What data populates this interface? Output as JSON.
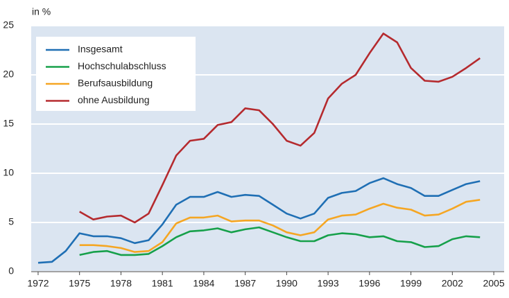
{
  "chart_data": {
    "type": "line",
    "y_label": "in %",
    "x": [
      1972,
      1973,
      1974,
      1975,
      1976,
      1977,
      1978,
      1979,
      1980,
      1981,
      1982,
      1983,
      1984,
      1985,
      1986,
      1987,
      1988,
      1989,
      1990,
      1991,
      1992,
      1993,
      1994,
      1995,
      1996,
      1997,
      1998,
      1999,
      2000,
      2001,
      2002,
      2003,
      2004
    ],
    "series": [
      {
        "name": "Insgesamt",
        "color": "#1f6fb4",
        "values": [
          0.9,
          1.0,
          2.1,
          3.9,
          3.6,
          3.6,
          3.4,
          2.9,
          3.2,
          4.8,
          6.8,
          7.6,
          7.6,
          8.1,
          7.6,
          7.8,
          7.7,
          6.8,
          5.9,
          5.4,
          5.9,
          7.5,
          8.0,
          8.2,
          9.0,
          9.5,
          8.9,
          8.5,
          7.7,
          7.7,
          8.3,
          8.9,
          9.2
        ]
      },
      {
        "name": "Hochschulabschluss",
        "color": "#16a04a",
        "values": [
          null,
          null,
          null,
          1.7,
          2.0,
          2.1,
          1.7,
          1.7,
          1.8,
          2.6,
          3.5,
          4.1,
          4.2,
          4.4,
          4.0,
          4.3,
          4.5,
          4.0,
          3.5,
          3.1,
          3.1,
          3.7,
          3.9,
          3.8,
          3.5,
          3.6,
          3.1,
          3.0,
          2.5,
          2.6,
          3.3,
          3.6,
          3.5
        ]
      },
      {
        "name": "Berufsausbildung",
        "color": "#f5a623",
        "values": [
          null,
          null,
          null,
          2.7,
          2.7,
          2.6,
          2.4,
          2.0,
          2.1,
          3.0,
          4.9,
          5.5,
          5.5,
          5.7,
          5.1,
          5.2,
          5.2,
          4.7,
          4.0,
          3.7,
          4.0,
          5.3,
          5.7,
          5.8,
          6.4,
          6.9,
          6.5,
          6.3,
          5.7,
          5.8,
          6.4,
          7.1,
          7.3
        ]
      },
      {
        "name": "ohne Ausbildung",
        "color": "#b52a2e",
        "values": [
          null,
          null,
          null,
          6.1,
          5.3,
          5.6,
          5.7,
          5.0,
          5.9,
          8.8,
          11.8,
          13.3,
          13.5,
          14.9,
          15.2,
          16.6,
          16.4,
          15.0,
          13.3,
          12.8,
          14.1,
          17.6,
          19.1,
          20.0,
          22.2,
          24.2,
          23.3,
          20.7,
          19.4,
          19.3,
          19.8,
          20.7,
          21.7
        ]
      }
    ],
    "xlim": [
      1971.5,
      2005.75
    ],
    "xticks": [
      1972,
      1975,
      1978,
      1981,
      1984,
      1987,
      1990,
      1993,
      1996,
      1999,
      2002,
      2005
    ],
    "ylim": [
      0,
      25
    ],
    "yticks": [
      0,
      5,
      10,
      15,
      20,
      25
    ],
    "grid": true,
    "legend": "upper left",
    "background": "#dbe5f1"
  }
}
